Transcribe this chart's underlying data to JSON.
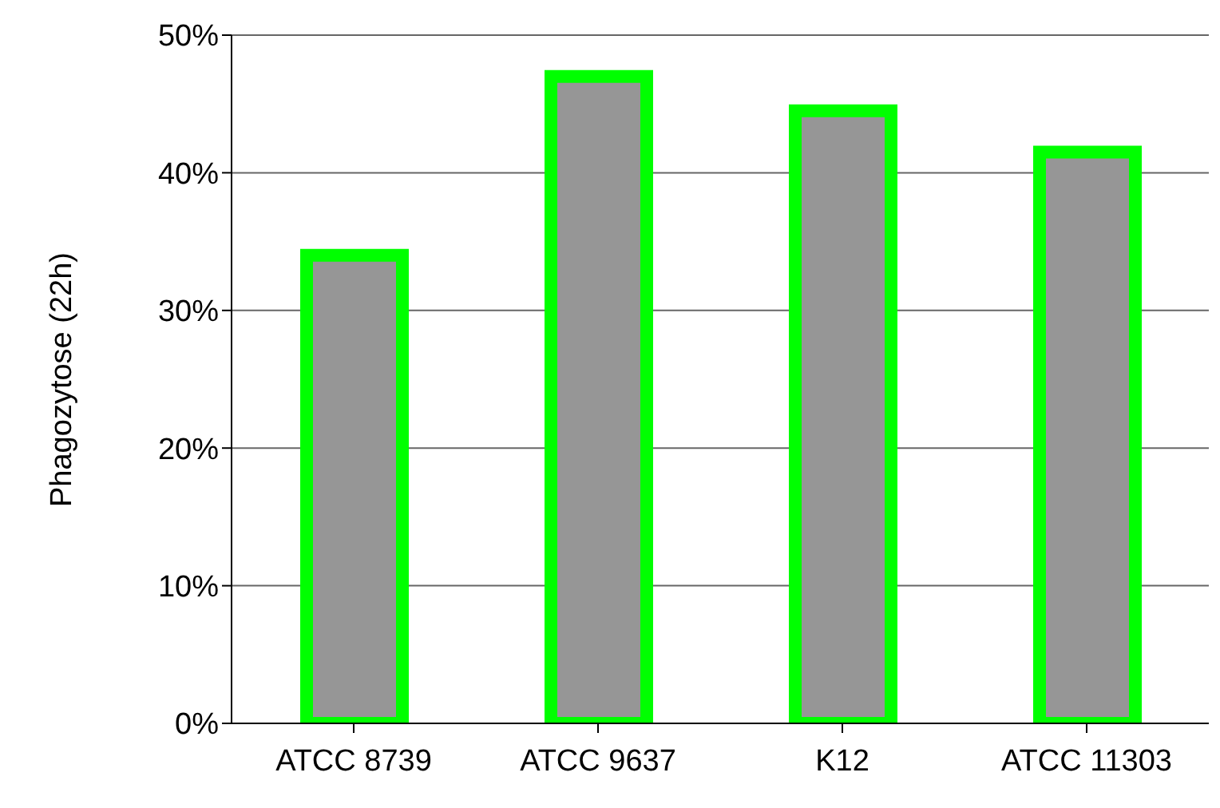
{
  "chart_data": {
    "type": "bar",
    "ylabel": "Phagozytose (22h)",
    "categories": [
      "ATCC 8739",
      "ATCC 9637",
      "K12",
      "ATCC 11303"
    ],
    "series": [
      {
        "color": "#969696",
        "values": [
          34,
          47,
          44.5,
          41.5
        ]
      }
    ],
    "ylim": [
      0,
      50
    ],
    "yticks": [
      {
        "value": 0,
        "label": "0%"
      },
      {
        "value": 10,
        "label": "10%"
      },
      {
        "value": 20,
        "label": "20%"
      },
      {
        "value": 30,
        "label": "30%"
      },
      {
        "value": 40,
        "label": "40%"
      },
      {
        "value": 50,
        "label": "50%"
      }
    ],
    "grid": "y",
    "legend": false
  }
}
